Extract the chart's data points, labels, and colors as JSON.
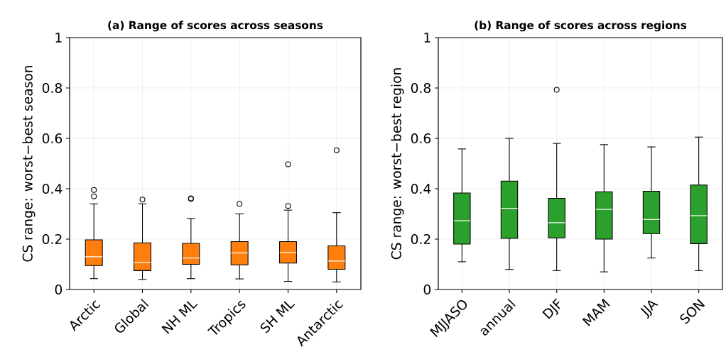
{
  "chart_data": [
    {
      "type": "box",
      "title": "(a) Range of scores across seasons",
      "ylabel": "CS range: worst−best season",
      "categories": [
        "Arctic",
        "Global",
        "NH ML",
        "Tropics",
        "SH ML",
        "Antarctic"
      ],
      "color": "#ff7f0e",
      "ylim": [
        0,
        1
      ],
      "yticks": [
        0,
        0.2,
        0.4,
        0.6,
        0.8,
        1
      ],
      "grid": true,
      "boxes": [
        {
          "low": 0.043,
          "q1": 0.095,
          "median": 0.13,
          "q3": 0.197,
          "high": 0.34,
          "outliers": [
            0.37,
            0.395
          ]
        },
        {
          "low": 0.04,
          "q1": 0.075,
          "median": 0.108,
          "q3": 0.185,
          "high": 0.34,
          "outliers": [
            0.357
          ]
        },
        {
          "low": 0.043,
          "q1": 0.1,
          "median": 0.125,
          "q3": 0.183,
          "high": 0.282,
          "outliers": [
            0.36,
            0.362
          ]
        },
        {
          "low": 0.042,
          "q1": 0.098,
          "median": 0.145,
          "q3": 0.19,
          "high": 0.3,
          "outliers": [
            0.34
          ]
        },
        {
          "low": 0.032,
          "q1": 0.105,
          "median": 0.147,
          "q3": 0.19,
          "high": 0.315,
          "outliers": [
            0.332,
            0.497
          ]
        },
        {
          "low": 0.03,
          "q1": 0.08,
          "median": 0.113,
          "q3": 0.173,
          "high": 0.305,
          "outliers": [
            0.553
          ]
        }
      ]
    },
    {
      "type": "box",
      "title": "(b) Range of scores across regions",
      "ylabel": "CS range: worst−best region",
      "categories": [
        "MJJASO",
        "annual",
        "DJF",
        "MAM",
        "JJA",
        "SON"
      ],
      "color": "#2ca02c",
      "ylim": [
        0,
        1
      ],
      "yticks": [
        0,
        0.2,
        0.4,
        0.6,
        0.8,
        1
      ],
      "grid": true,
      "boxes": [
        {
          "low": 0.11,
          "q1": 0.18,
          "median": 0.273,
          "q3": 0.383,
          "high": 0.558
        },
        {
          "low": 0.08,
          "q1": 0.203,
          "median": 0.322,
          "q3": 0.43,
          "high": 0.6
        },
        {
          "low": 0.075,
          "q1": 0.205,
          "median": 0.265,
          "q3": 0.362,
          "high": 0.58,
          "outliers": [
            0.793
          ]
        },
        {
          "low": 0.07,
          "q1": 0.2,
          "median": 0.318,
          "q3": 0.388,
          "high": 0.575
        },
        {
          "low": 0.125,
          "q1": 0.222,
          "median": 0.278,
          "q3": 0.39,
          "high": 0.566
        },
        {
          "low": 0.075,
          "q1": 0.182,
          "median": 0.293,
          "q3": 0.415,
          "high": 0.605
        }
      ]
    }
  ]
}
